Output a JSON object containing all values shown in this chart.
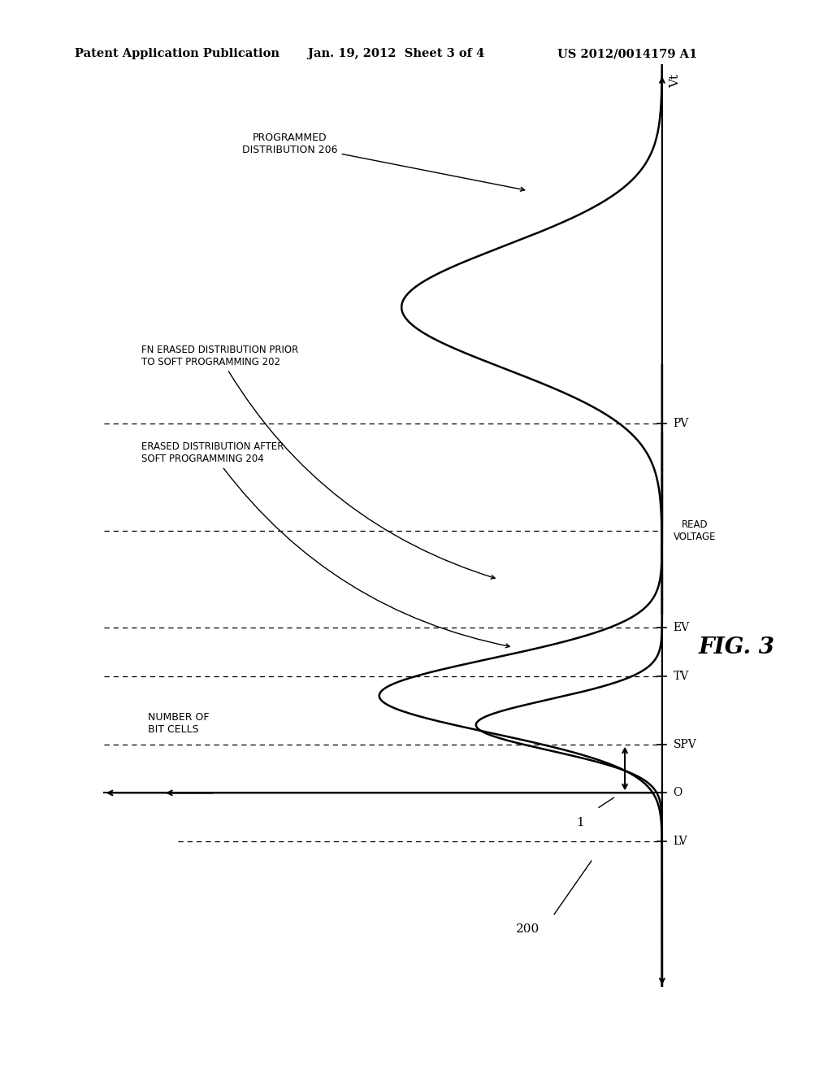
{
  "header_left": "Patent Application Publication",
  "header_center": "Jan. 19, 2012  Sheet 3 of 4",
  "header_right": "US 2012/0014179 A1",
  "background_color": "#ffffff",
  "vt_label": "Vt",
  "y_axis_label": "NUMBER OF\nBIT CELLS",
  "read_voltage_label": "READ\nVOLTAGE",
  "programmed_label": "PROGRAMMED\nDISTRIBUTION 206",
  "fn_erased_label": "FN ERASED DISTRIBUTION PRIOR\nTO SOFT PROGRAMMING 202",
  "erased_after_label": "ERASED DISTRIBUTION AFTER\nSOFT PROGRAMMING 204",
  "label_200": "200",
  "label_1": "1",
  "fig_label": "FIG. 3",
  "vt_axis_x": 7.5,
  "x_min": -0.5,
  "x_max": 9.0,
  "y_O": 2.0,
  "y_LV": 1.5,
  "y_SPV": 2.5,
  "y_TV": 3.2,
  "y_EV": 3.7,
  "y_PV": 5.8,
  "y_read": 4.7,
  "y_min": 0.0,
  "y_max": 9.5,
  "prog_y_center": 7.0,
  "prog_amplitude": 3.5,
  "prog_sigma": 0.7,
  "prog_xscale": 0.9,
  "fn_y_center": 3.0,
  "fn_amplitude": 3.8,
  "fn_sigma": 0.45,
  "fn_xscale": 0.85,
  "soft_y_center": 2.7,
  "soft_amplitude": 2.5,
  "soft_sigma": 0.35,
  "soft_xscale": 0.75
}
